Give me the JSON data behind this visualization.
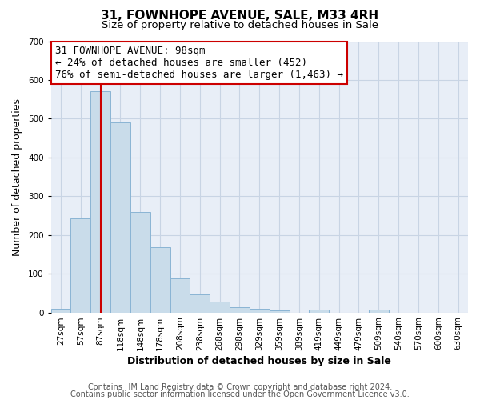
{
  "title": "31, FOWNHOPE AVENUE, SALE, M33 4RH",
  "subtitle": "Size of property relative to detached houses in Sale",
  "xlabel": "Distribution of detached houses by size in Sale",
  "ylabel": "Number of detached properties",
  "bar_labels": [
    "27sqm",
    "57sqm",
    "87sqm",
    "118sqm",
    "148sqm",
    "178sqm",
    "208sqm",
    "238sqm",
    "268sqm",
    "298sqm",
    "329sqm",
    "359sqm",
    "389sqm",
    "419sqm",
    "449sqm",
    "479sqm",
    "509sqm",
    "540sqm",
    "570sqm",
    "600sqm",
    "630sqm"
  ],
  "bar_values": [
    10,
    242,
    572,
    490,
    260,
    168,
    88,
    47,
    27,
    13,
    10,
    5,
    0,
    8,
    0,
    0,
    7,
    0,
    0,
    0,
    0
  ],
  "bar_color": "#c9dcea",
  "bar_edge_color": "#8ab4d4",
  "bar_width": 1.0,
  "vline_x_index": 2,
  "vline_color": "#cc0000",
  "ylim": [
    0,
    700
  ],
  "yticks": [
    0,
    100,
    200,
    300,
    400,
    500,
    600,
    700
  ],
  "annotation_line1": "31 FOWNHOPE AVENUE: 98sqm",
  "annotation_line2": "← 24% of detached houses are smaller (452)",
  "annotation_line3": "76% of semi-detached houses are larger (1,463) →",
  "footer_line1": "Contains HM Land Registry data © Crown copyright and database right 2024.",
  "footer_line2": "Contains public sector information licensed under the Open Government Licence v3.0.",
  "bg_color": "#ffffff",
  "plot_bg_color": "#e8eef7",
  "grid_color": "#c8d4e4",
  "title_fontsize": 11,
  "subtitle_fontsize": 9.5,
  "label_fontsize": 9,
  "tick_fontsize": 7.5,
  "footer_fontsize": 7,
  "annotation_fontsize": 9
}
